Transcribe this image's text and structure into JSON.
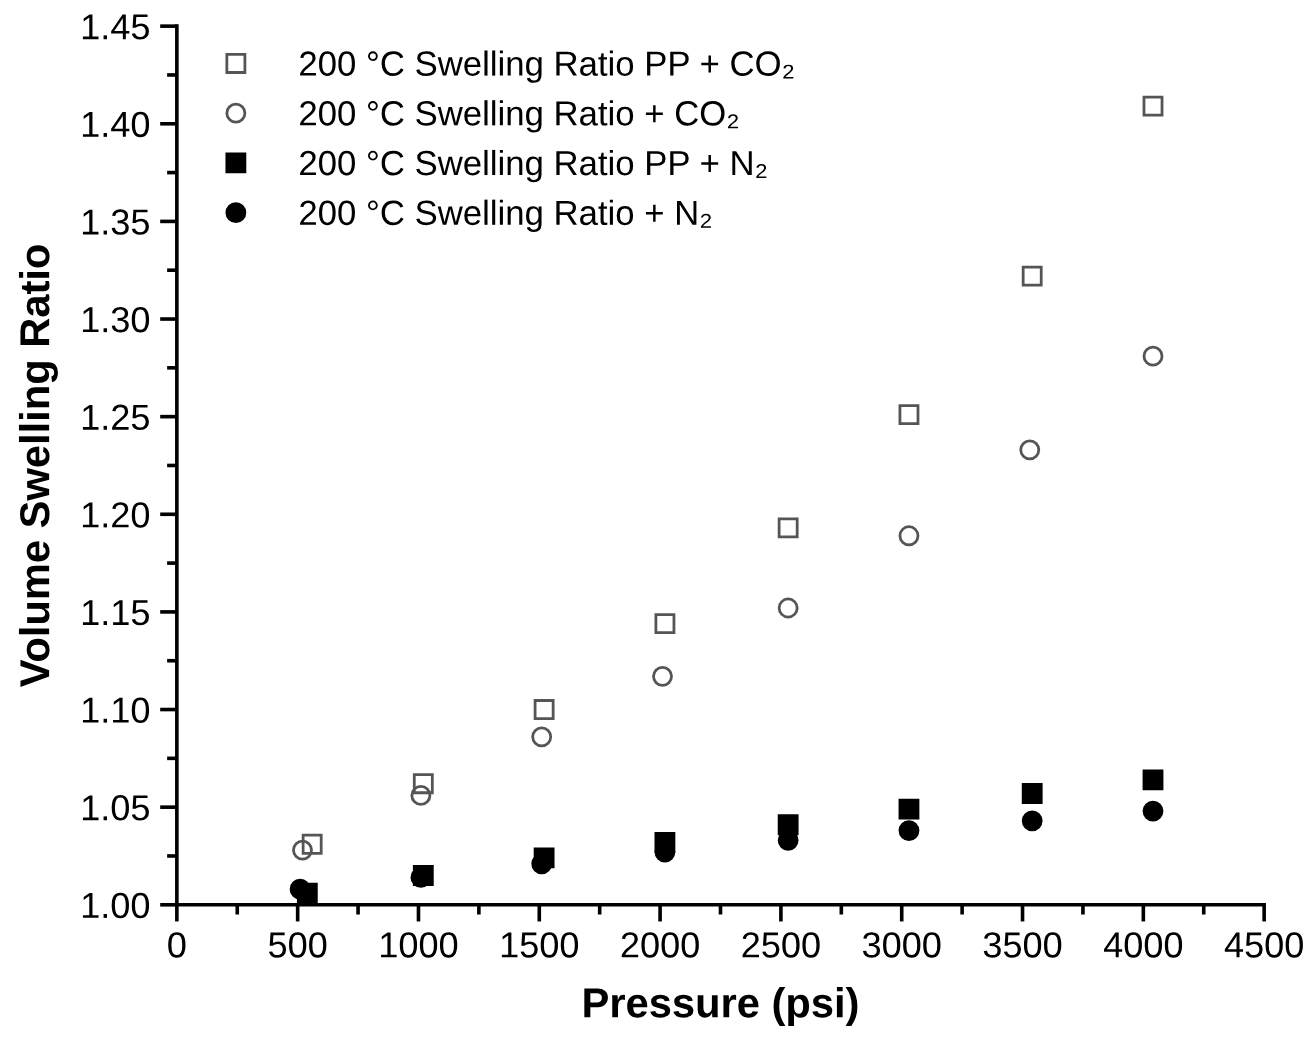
{
  "chart_data": {
    "type": "scatter",
    "xlabel": "Pressure (psi)",
    "ylabel": "Volume Swelling Ratio",
    "xlim": [
      0,
      4500
    ],
    "xticks": [
      0,
      500,
      1000,
      1500,
      2000,
      2500,
      3000,
      3500,
      4000,
      4500
    ],
    "ylim": [
      1.0,
      1.45
    ],
    "yticks": [
      {
        "value": 1.0,
        "label": "1.00"
      },
      {
        "value": 1.05,
        "label": "1.05"
      },
      {
        "value": 1.1,
        "label": "1.10"
      },
      {
        "value": 1.15,
        "label": "1.15"
      },
      {
        "value": 1.2,
        "label": "1.20"
      },
      {
        "value": 1.25,
        "label": "1.25"
      },
      {
        "value": 1.3,
        "label": "1.30"
      },
      {
        "value": 1.35,
        "label": "1.35"
      },
      {
        "value": 1.4,
        "label": "1.40"
      },
      {
        "value": 1.45,
        "label": "1.45"
      }
    ],
    "grid": false,
    "legend": "top left",
    "series": [
      {
        "name": "200 °C Swelling Ratio PP + CO₂",
        "color": "#555555",
        "marker": "square",
        "x": [
          560,
          1020,
          1520,
          2020,
          2530,
          3030,
          3540,
          4040
        ],
        "values": [
          1.031,
          1.062,
          1.1,
          1.144,
          1.193,
          1.251,
          1.322,
          1.409
        ]
      },
      {
        "name": "200 °C Swelling Ratio + CO₂",
        "color": "#555555",
        "marker": "circle",
        "x": [
          520,
          1010,
          1510,
          2010,
          2530,
          3030,
          3530,
          4040
        ],
        "values": [
          1.028,
          1.056,
          1.086,
          1.117,
          1.152,
          1.189,
          1.233,
          1.281
        ]
      },
      {
        "name": "200 °C Swelling Ratio PP + N₂",
        "color": "#000000",
        "marker": "square",
        "x": [
          540,
          1020,
          1520,
          2020,
          2530,
          3030,
          3540,
          4040
        ],
        "values": [
          1.006,
          1.015,
          1.024,
          1.032,
          1.041,
          1.049,
          1.057,
          1.064
        ]
      },
      {
        "name": "200 °C Swelling Ratio + N₂",
        "color": "#000000",
        "marker": "circle",
        "x": [
          510,
          1010,
          1510,
          2020,
          2530,
          3030,
          3540,
          4040
        ],
        "values": [
          1.008,
          1.014,
          1.021,
          1.027,
          1.033,
          1.038,
          1.043,
          1.048
        ]
      }
    ]
  }
}
